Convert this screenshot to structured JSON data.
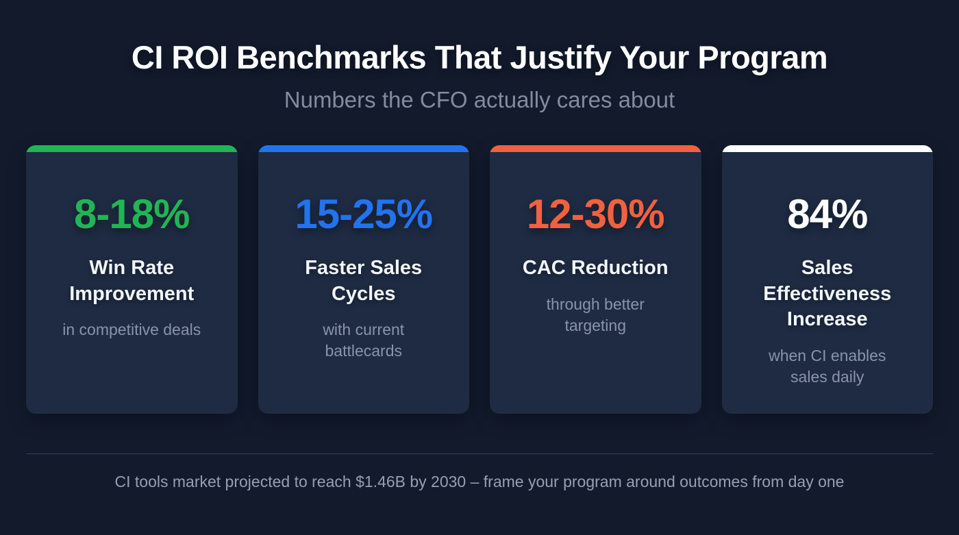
{
  "header": {
    "title": "CI ROI Benchmarks That Justify Your Program",
    "subtitle": "Numbers the CFO actually cares about"
  },
  "cards": [
    {
      "value": "8-18%",
      "label": "Win Rate Improvement",
      "context": "in competitive deals",
      "accent": "#22b553"
    },
    {
      "value": "15-25%",
      "label": "Faster Sales Cycles",
      "context": "with current battlecards",
      "accent": "#2273f0"
    },
    {
      "value": "12-30%",
      "label": "CAC Reduction",
      "context": "through better targeting",
      "accent": "#f2613f"
    },
    {
      "value": "84%",
      "label": "Sales Effectiveness Increase",
      "context": "when CI enables sales daily",
      "accent": "#ffffff"
    }
  ],
  "footer": {
    "note": "CI tools market projected to reach $1.46B by 2030 – frame your program around outcomes from day one"
  },
  "colors": {
    "background": "#121a2c",
    "card_background": "#1e2b43",
    "divider": "#33405a",
    "muted_text": "#8a94a8",
    "green": "#22b553",
    "blue": "#2273f0",
    "orange": "#f2613f",
    "white": "#ffffff"
  },
  "chart_data": {
    "type": "table",
    "title": "CI ROI Benchmarks That Justify Your Program",
    "subtitle": "Numbers the CFO actually cares about",
    "stats": [
      {
        "metric": "Win Rate Improvement",
        "value": "8-18%",
        "value_low": 8,
        "value_high": 18,
        "unit": "%",
        "context": "in competitive deals",
        "color": "#22b553"
      },
      {
        "metric": "Faster Sales Cycles",
        "value": "15-25%",
        "value_low": 15,
        "value_high": 25,
        "unit": "%",
        "context": "with current battlecards",
        "color": "#2273f0"
      },
      {
        "metric": "CAC Reduction",
        "value": "12-30%",
        "value_low": 12,
        "value_high": 30,
        "unit": "%",
        "context": "through better targeting",
        "color": "#f2613f"
      },
      {
        "metric": "Sales Effectiveness Increase",
        "value": "84%",
        "value_low": 84,
        "value_high": 84,
        "unit": "%",
        "context": "when CI enables sales daily",
        "color": "#ffffff"
      }
    ],
    "footnote": "CI tools market projected to reach $1.46B by 2030 – frame your program around outcomes from day one",
    "layout": "4 KPI stat cards in a row, dark navy slide"
  }
}
